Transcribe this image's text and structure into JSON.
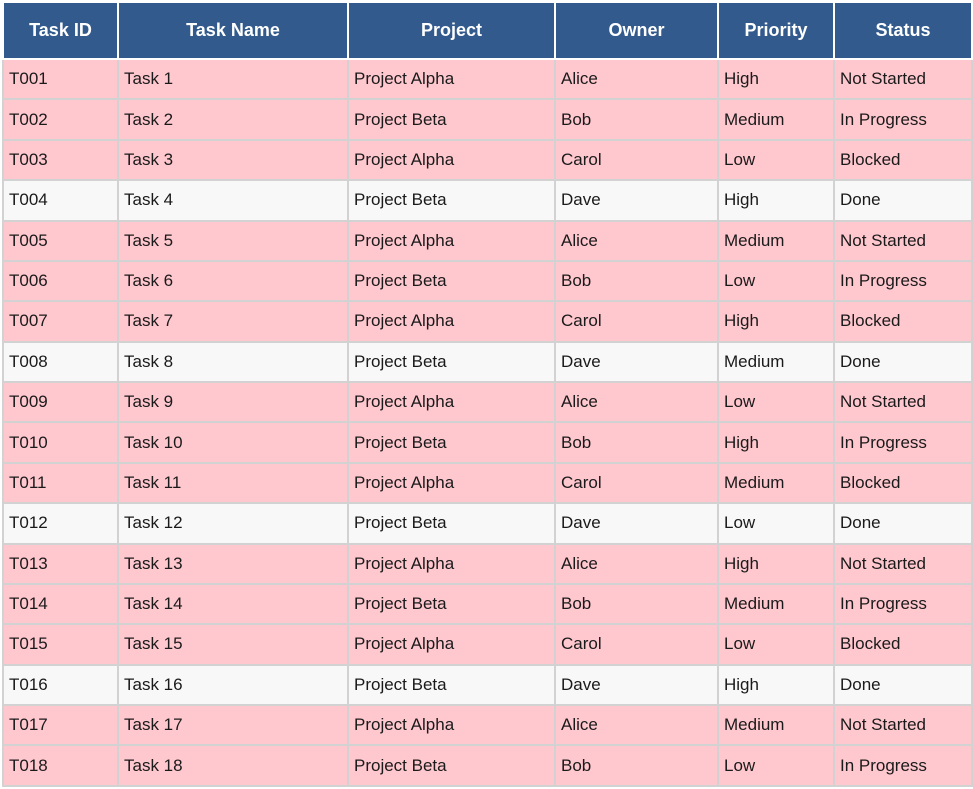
{
  "table": {
    "columns": [
      "Task ID",
      "Task Name",
      "Project",
      "Owner",
      "Priority",
      "Status"
    ],
    "rows": [
      {
        "cells": [
          "T001",
          "Task 1",
          "Project Alpha",
          "Alice",
          "High",
          "Not Started"
        ],
        "highlighted": true
      },
      {
        "cells": [
          "T002",
          "Task 2",
          "Project Beta",
          "Bob",
          "Medium",
          "In Progress"
        ],
        "highlighted": true
      },
      {
        "cells": [
          "T003",
          "Task 3",
          "Project Alpha",
          "Carol",
          "Low",
          "Blocked"
        ],
        "highlighted": true
      },
      {
        "cells": [
          "T004",
          "Task 4",
          "Project Beta",
          "Dave",
          "High",
          "Done"
        ],
        "highlighted": false
      },
      {
        "cells": [
          "T005",
          "Task 5",
          "Project Alpha",
          "Alice",
          "Medium",
          "Not Started"
        ],
        "highlighted": true
      },
      {
        "cells": [
          "T006",
          "Task 6",
          "Project Beta",
          "Bob",
          "Low",
          "In Progress"
        ],
        "highlighted": true
      },
      {
        "cells": [
          "T007",
          "Task 7",
          "Project Alpha",
          "Carol",
          "High",
          "Blocked"
        ],
        "highlighted": true
      },
      {
        "cells": [
          "T008",
          "Task 8",
          "Project Beta",
          "Dave",
          "Medium",
          "Done"
        ],
        "highlighted": false
      },
      {
        "cells": [
          "T009",
          "Task 9",
          "Project Alpha",
          "Alice",
          "Low",
          "Not Started"
        ],
        "highlighted": true
      },
      {
        "cells": [
          "T010",
          "Task 10",
          "Project Beta",
          "Bob",
          "High",
          "In Progress"
        ],
        "highlighted": true
      },
      {
        "cells": [
          "T011",
          "Task 11",
          "Project Alpha",
          "Carol",
          "Medium",
          "Blocked"
        ],
        "highlighted": true
      },
      {
        "cells": [
          "T012",
          "Task 12",
          "Project Beta",
          "Dave",
          "Low",
          "Done"
        ],
        "highlighted": false
      },
      {
        "cells": [
          "T013",
          "Task 13",
          "Project Alpha",
          "Alice",
          "High",
          "Not Started"
        ],
        "highlighted": true
      },
      {
        "cells": [
          "T014",
          "Task 14",
          "Project Beta",
          "Bob",
          "Medium",
          "In Progress"
        ],
        "highlighted": true
      },
      {
        "cells": [
          "T015",
          "Task 15",
          "Project Alpha",
          "Carol",
          "Low",
          "Blocked"
        ],
        "highlighted": true
      },
      {
        "cells": [
          "T016",
          "Task 16",
          "Project Beta",
          "Dave",
          "High",
          "Done"
        ],
        "highlighted": false
      },
      {
        "cells": [
          "T017",
          "Task 17",
          "Project Alpha",
          "Alice",
          "Medium",
          "Not Started"
        ],
        "highlighted": true
      },
      {
        "cells": [
          "T018",
          "Task 18",
          "Project Beta",
          "Bob",
          "Low",
          "In Progress"
        ],
        "highlighted": true
      }
    ]
  },
  "colors": {
    "header_bg": "#325A8C",
    "header_text": "#FFFFFF",
    "row_highlight_bg": "#FFC7CE",
    "row_normal_bg": "#F8F8F8",
    "grid_line": "#D2D2D2",
    "cell_text": "#1A1A1A"
  },
  "column_keys": [
    "task-id",
    "task-name",
    "project",
    "owner",
    "priority",
    "status"
  ]
}
